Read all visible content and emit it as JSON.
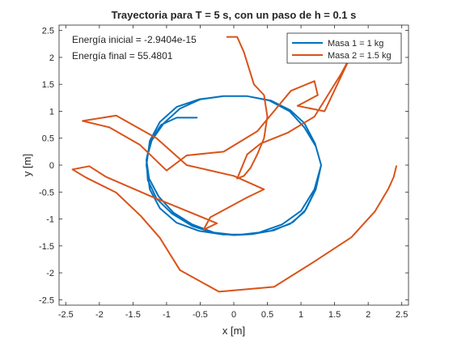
{
  "chart_data": {
    "type": "line",
    "title": "Trayectoria para T = 5 s, con un paso de h = 0.1 s",
    "xlabel": "x [m]",
    "ylabel": "y [m]",
    "xlim": [
      -2.6,
      2.6
    ],
    "ylim": [
      -2.6,
      2.6
    ],
    "xticks": [
      -2.5,
      -2,
      -1.5,
      -1,
      -0.5,
      0,
      0.5,
      1,
      1.5,
      2,
      2.5
    ],
    "xtick_labels": [
      "-2.5",
      "-2",
      "-1.5",
      "-1",
      "-0.5",
      "0",
      "0.5",
      "1",
      "1.5",
      "2",
      "2.5"
    ],
    "yticks": [
      -2.5,
      -2,
      -1.5,
      -1,
      -0.5,
      0,
      0.5,
      1,
      1.5,
      2,
      2.5
    ],
    "ytick_labels": [
      "-2.5",
      "-2",
      "-1.5",
      "-1",
      "-0.5",
      "0",
      "0.5",
      "1",
      "1.5",
      "2",
      "2.5"
    ],
    "grid": false,
    "legend_position": "top-right",
    "annotations": [
      "Energía inicial = -2.9404e-15",
      "Energía final = 55.4801"
    ],
    "series": [
      {
        "name": "Masa 1 = 1 kg",
        "color": "#0072BD",
        "x": [
          1.3,
          1.21,
          1.05,
          0.84,
          0.55,
          0.2,
          -0.16,
          -0.52,
          -0.85,
          -1.1,
          -1.25,
          -1.3,
          -1.25,
          -1.1,
          -0.85,
          -0.52,
          -0.16,
          0.2,
          0.55,
          0.84,
          1.05,
          1.21,
          1.3,
          1.22,
          1.07,
          0.88,
          0.6,
          0.28,
          0.0,
          -0.3,
          -0.62,
          -0.92,
          -1.15,
          -1.28,
          -1.3,
          -1.22,
          -1.04,
          -0.8,
          -0.5,
          -0.15,
          0.2,
          0.53,
          0.83,
          1.05,
          1.22,
          1.3,
          1.2,
          1.0,
          0.72,
          0.38,
          0.04,
          -0.3,
          -0.62,
          -0.9,
          -1.12,
          -1.26,
          -1.3,
          -1.24,
          -1.08,
          -0.85,
          -0.55
        ],
        "y": [
          0.0,
          -0.47,
          -0.87,
          -1.09,
          -1.22,
          -1.29,
          -1.29,
          -1.22,
          -1.07,
          -0.8,
          -0.45,
          0.0,
          0.45,
          0.8,
          1.08,
          1.22,
          1.28,
          1.28,
          1.2,
          1.02,
          0.78,
          0.4,
          0.0,
          -0.45,
          -0.83,
          -1.06,
          -1.21,
          -1.28,
          -1.3,
          -1.26,
          -1.13,
          -0.9,
          -0.62,
          -0.28,
          0.1,
          0.46,
          0.78,
          1.05,
          1.22,
          1.28,
          1.28,
          1.2,
          1.0,
          0.7,
          0.35,
          0.0,
          -0.45,
          -0.85,
          -1.1,
          -1.25,
          -1.3,
          -1.25,
          -1.1,
          -0.88,
          -0.58,
          -0.25,
          0.1,
          0.45,
          0.75,
          0.88,
          0.88
        ]
      },
      {
        "name": "Masa 2 = 1.5 kg",
        "color": "#D95319",
        "x": [
          2.42,
          2.38,
          2.3,
          2.1,
          1.75,
          1.2,
          0.6,
          -0.22,
          -0.8,
          -1.1,
          -1.38,
          -1.75,
          -2.2,
          -2.4,
          -2.15,
          -1.9,
          -1.25,
          -0.7,
          -0.25,
          -0.45,
          -0.35,
          0.2,
          0.45,
          0.0,
          -0.7,
          -1.15,
          -1.75,
          -2.25,
          -1.85,
          -1.4,
          -1.0,
          -0.7,
          -0.15,
          0.35,
          0.85,
          1.2,
          1.25,
          0.95,
          1.35,
          1.75,
          1.6,
          1.4,
          1.2,
          0.8,
          0.4,
          0.2,
          0.1,
          0.05,
          0.15,
          0.25,
          0.35,
          0.45,
          0.5,
          0.45,
          0.3,
          0.15,
          0.05,
          -0.1
        ],
        "y": [
          -0.02,
          -0.22,
          -0.44,
          -0.86,
          -1.34,
          -1.79,
          -2.26,
          -2.35,
          -1.95,
          -1.35,
          -0.95,
          -0.51,
          -0.23,
          -0.08,
          -0.02,
          -0.22,
          -0.57,
          -0.85,
          -1.08,
          -1.2,
          -0.97,
          -0.6,
          -0.45,
          -0.2,
          0.0,
          0.5,
          0.92,
          0.82,
          0.7,
          0.38,
          -0.1,
          0.18,
          0.25,
          0.63,
          1.38,
          1.56,
          1.3,
          1.1,
          1.0,
          2.05,
          1.7,
          1.3,
          0.9,
          0.6,
          0.4,
          0.2,
          -0.1,
          -0.25,
          -0.2,
          -0.05,
          0.2,
          0.5,
          0.9,
          1.3,
          1.5,
          2.1,
          2.38,
          2.38
        ]
      }
    ]
  }
}
